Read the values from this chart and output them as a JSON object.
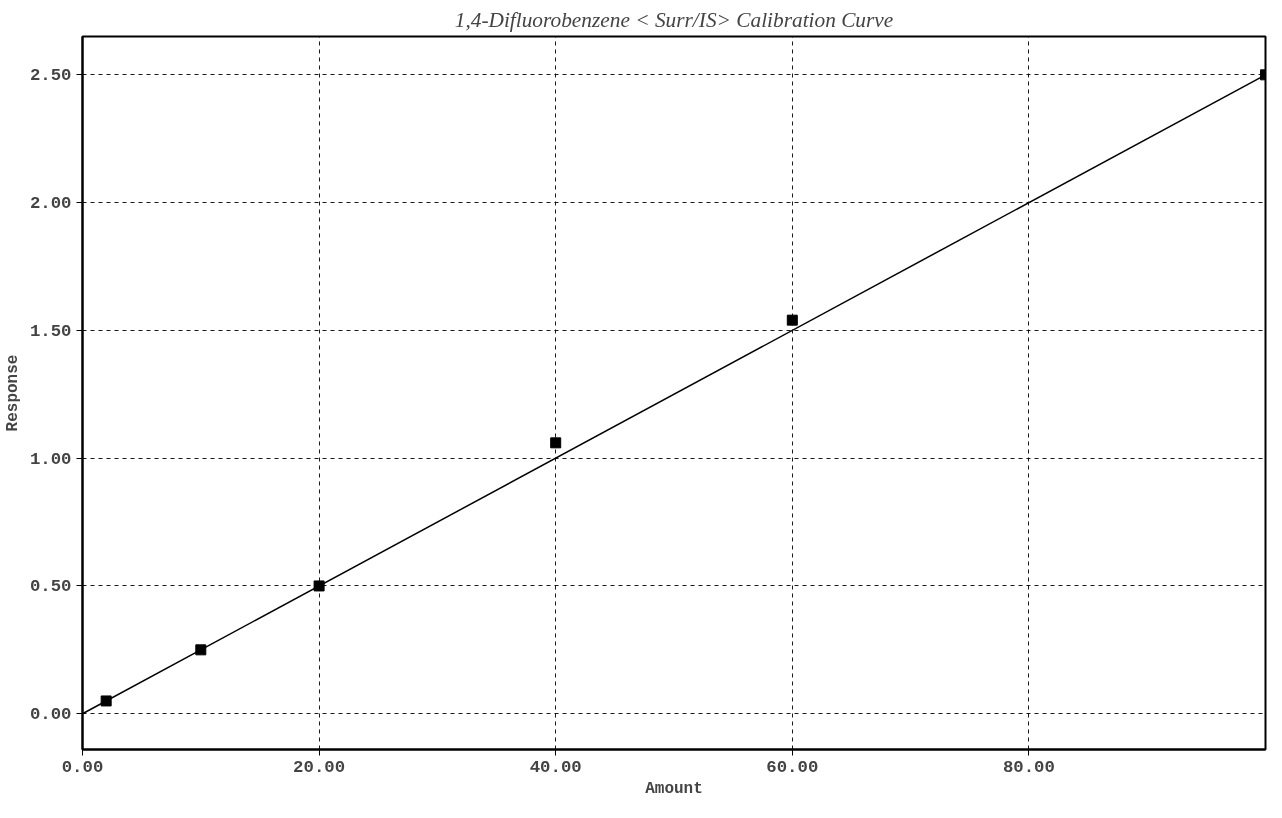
{
  "chart_data": {
    "type": "scatter",
    "title": "1,4-Difluorobenzene < Surr/IS> Calibration Curve",
    "xlabel": "Amount",
    "ylabel": "Response",
    "xlim": [
      0,
      100
    ],
    "ylim": [
      -0.14,
      2.65
    ],
    "xticks": [
      {
        "value": 0,
        "label": "0.00"
      },
      {
        "value": 20,
        "label": "20.00"
      },
      {
        "value": 40,
        "label": "40.00"
      },
      {
        "value": 60,
        "label": "60.00"
      },
      {
        "value": 80,
        "label": "80.00"
      }
    ],
    "yticks": [
      {
        "value": 0,
        "label": "0.00"
      },
      {
        "value": 0.5,
        "label": "0.50"
      },
      {
        "value": 1,
        "label": "1.00"
      },
      {
        "value": 1.5,
        "label": "1.50"
      },
      {
        "value": 2,
        "label": "2.00"
      },
      {
        "value": 2.5,
        "label": "2.50"
      }
    ],
    "grid": true,
    "series": [
      {
        "marker": "square",
        "color": "#000000",
        "x": [
          2,
          10,
          20,
          40,
          60,
          100
        ],
        "values": [
          0.05,
          0.25,
          0.5,
          1.06,
          1.54,
          2.5
        ]
      },
      {
        "type": "line",
        "color": "#000000",
        "x": [
          0,
          100
        ],
        "values": [
          0,
          2.5
        ]
      }
    ]
  }
}
